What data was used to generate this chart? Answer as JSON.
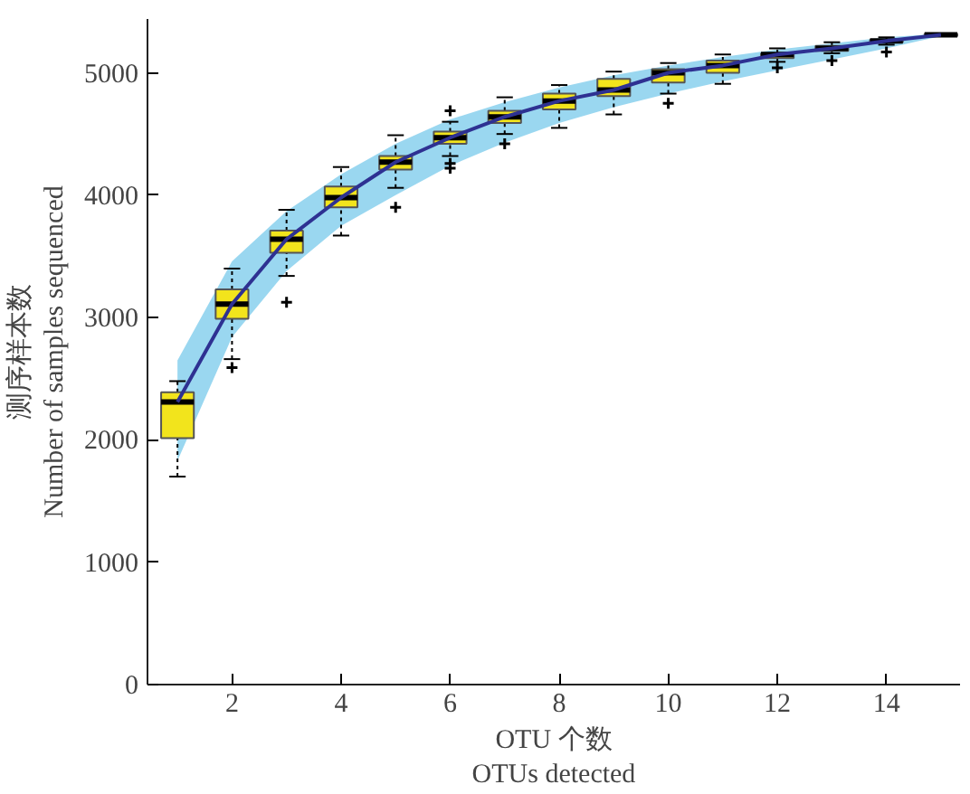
{
  "chart_data": {
    "type": "box",
    "xlabel": "OTU 个数\nOTUs detected",
    "ylabel": "测序样本数\nNumber of samples sequenced",
    "x": [
      1,
      2,
      3,
      4,
      5,
      6,
      7,
      8,
      9,
      10,
      11,
      12,
      13,
      14,
      15
    ],
    "color": "#f2e41c",
    "boxes": [
      {
        "low": 1700,
        "q1": 2015,
        "median": 2310,
        "q3": 2390,
        "high": 2480
      },
      {
        "low": 2660,
        "q1": 2990,
        "median": 3110,
        "q3": 3230,
        "high": 3400,
        "outliers": [
          2590
        ]
      },
      {
        "low": 3340,
        "q1": 3530,
        "median": 3640,
        "q3": 3710,
        "high": 3880,
        "outliers": [
          3125
        ]
      },
      {
        "low": 3670,
        "q1": 3900,
        "median": 3980,
        "q3": 4070,
        "high": 4230
      },
      {
        "low": 4060,
        "q1": 4210,
        "median": 4270,
        "q3": 4320,
        "high": 4490,
        "outliers": [
          3900
        ]
      },
      {
        "low": 4320,
        "q1": 4420,
        "median": 4470,
        "q3": 4520,
        "high": 4600,
        "outliers": [
          4690,
          4260,
          4220
        ]
      },
      {
        "low": 4500,
        "q1": 4590,
        "median": 4640,
        "q3": 4690,
        "high": 4800,
        "outliers": [
          4420
        ]
      },
      {
        "low": 4550,
        "q1": 4700,
        "median": 4770,
        "q3": 4830,
        "high": 4900
      },
      {
        "low": 4660,
        "q1": 4810,
        "median": 4860,
        "q3": 4950,
        "high": 5010
      },
      {
        "low": 4830,
        "q1": 4920,
        "median": 5000,
        "q3": 5030,
        "high": 5080,
        "outliers": [
          4750
        ]
      },
      {
        "low": 4910,
        "q1": 5000,
        "median": 5060,
        "q3": 5100,
        "high": 5150
      },
      {
        "low": 5090,
        "q1": 5120,
        "median": 5150,
        "q3": 5160,
        "high": 5200,
        "outliers": [
          5040
        ]
      },
      {
        "low": 5160,
        "q1": 5180,
        "median": 5200,
        "q3": 5220,
        "high": 5250,
        "outliers": [
          5100
        ]
      },
      {
        "low": 5230,
        "q1": 5250,
        "median": 5260,
        "q3": 5270,
        "high": 5290,
        "outliers": [
          5170
        ]
      },
      {
        "low": 5300,
        "q1": 5300,
        "median": 5310,
        "q3": 5320,
        "high": 5320
      }
    ],
    "series": [
      {
        "type": "line",
        "color": "#2e3192",
        "values": [
          2310,
          3110,
          3640,
          3980,
          4270,
          4470,
          4640,
          4770,
          4860,
          5000,
          5060,
          5150,
          5200,
          5260,
          5310
        ],
        "lower": [
          1830,
          2840,
          3380,
          3750,
          4000,
          4240,
          4430,
          4590,
          4720,
          4830,
          4930,
          5020,
          5110,
          5200,
          5300
        ],
        "upper": [
          2650,
          3460,
          3870,
          4170,
          4420,
          4620,
          4760,
          4880,
          4980,
          5060,
          5130,
          5190,
          5240,
          5290,
          5320
        ]
      }
    ],
    "xlim": [
      0.45,
      15.35
    ],
    "ylim": [
      0,
      5440
    ],
    "xticks": [
      2,
      4,
      6,
      8,
      10,
      12,
      14
    ],
    "yticks": [
      0,
      1000,
      2000,
      3000,
      4000,
      5000
    ],
    "grid": false
  }
}
